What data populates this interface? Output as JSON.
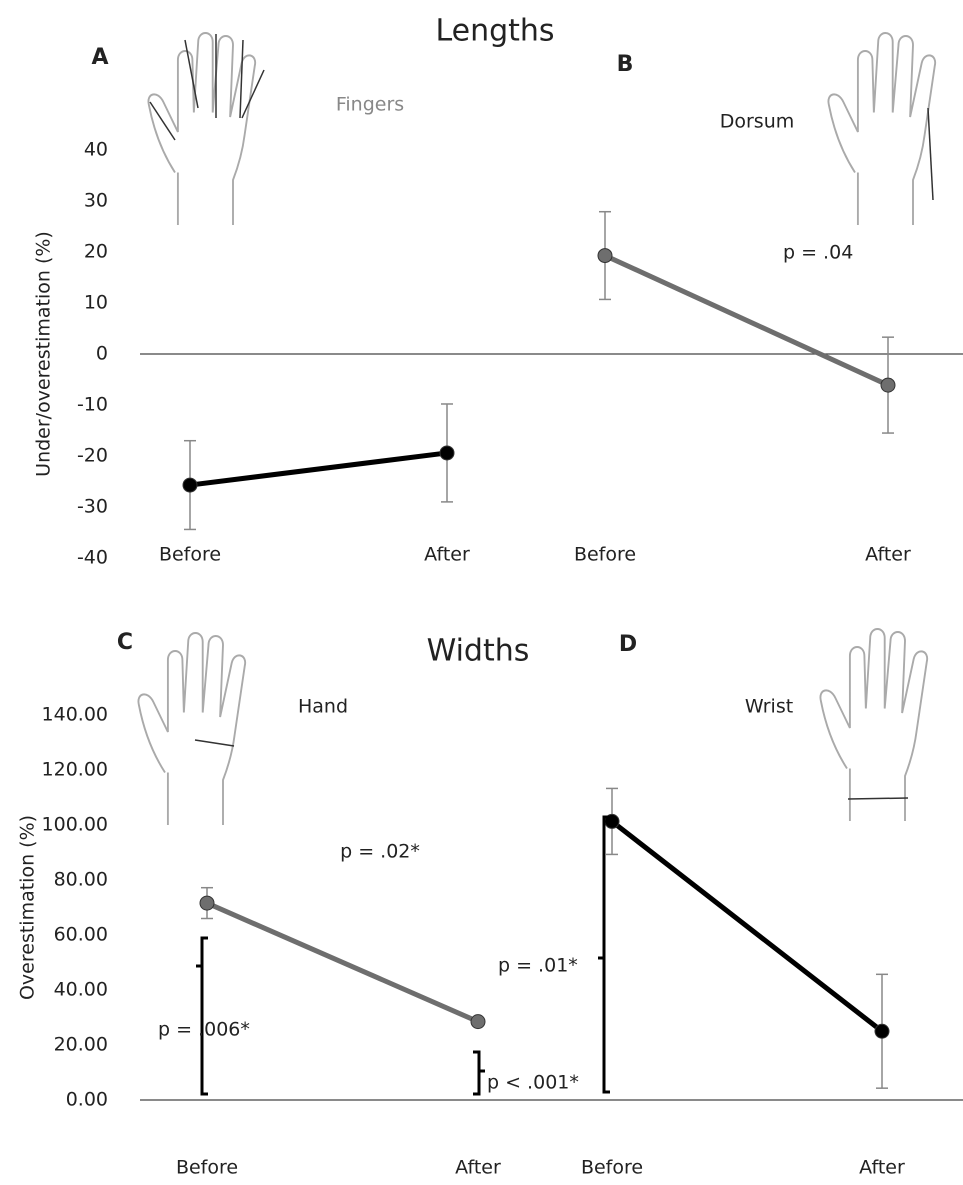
{
  "chart_data": [
    {
      "type": "line",
      "title": "Lengths",
      "ylabel": "Under/overestimation (%)",
      "ylim": [
        -40,
        40
      ],
      "yticks": [
        -40,
        -30,
        -20,
        -10,
        0,
        10,
        20,
        30,
        40
      ],
      "panels": [
        {
          "letter": "A",
          "label": "Fingers",
          "categories": [
            "Before",
            "After"
          ],
          "values": [
            -25.7,
            -19.4
          ],
          "errors": [
            8.7,
            9.6
          ],
          "color": "#000000"
        },
        {
          "letter": "B",
          "label": "Dorsum",
          "categories": [
            "Before",
            "After"
          ],
          "values": [
            19.3,
            -6.1
          ],
          "errors": [
            8.6,
            9.4
          ],
          "color": "#6e6e6e"
        }
      ],
      "annotations": [
        "p = .04"
      ]
    },
    {
      "type": "line",
      "title": "Widths",
      "ylabel": "Overestimation (%)",
      "ylim": [
        0,
        140
      ],
      "yticks": [
        {
          "value": 0,
          "label": "0.00"
        },
        {
          "value": 20,
          "label": "20.00"
        },
        {
          "value": 40,
          "label": "40.00"
        },
        {
          "value": 60,
          "label": "60.00"
        },
        {
          "value": 80,
          "label": "80.00"
        },
        {
          "value": 100,
          "label": "100.00"
        },
        {
          "value": 120,
          "label": "120.00"
        },
        {
          "value": 140,
          "label": "140.00"
        }
      ],
      "panels": [
        {
          "letter": "C",
          "label": "Hand",
          "categories": [
            "Before",
            "After"
          ],
          "values": [
            71.6,
            28.5
          ],
          "errors": [
            5.6,
            1.0
          ],
          "color": "#6e6e6e"
        },
        {
          "letter": "D",
          "label": "Wrist",
          "categories": [
            "Before",
            "After"
          ],
          "values": [
            101.3,
            25.0
          ],
          "errors": [
            12.0,
            20.7
          ],
          "color": "#000000"
        }
      ],
      "annotations": [
        "p = .02*",
        "p = .006*",
        "p < .001*",
        "p = .01*"
      ]
    }
  ]
}
